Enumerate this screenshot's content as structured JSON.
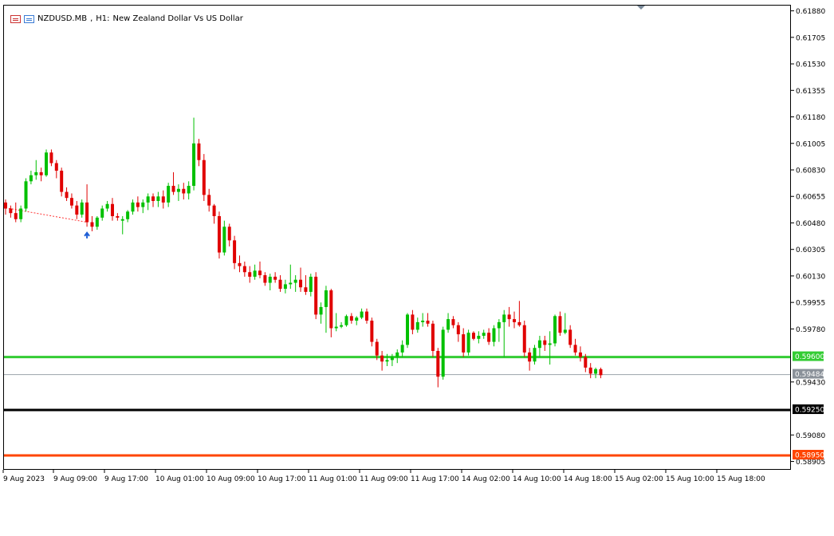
{
  "header": {
    "symbol": "NZDUSD.MB",
    "timeframe": "H1:",
    "description": "New Zealand Dollar Vs US Dollar"
  },
  "chart_data": {
    "type": "candlestick",
    "symbol": "NZDUSD.MB",
    "timeframe": "H1",
    "y_range": [
      0.5885,
      0.6192
    ],
    "y_ticks": [
      "0.61880",
      "0.61705",
      "0.61530",
      "0.61355",
      "0.61180",
      "0.61005",
      "0.60830",
      "0.60655",
      "0.60480",
      "0.60305",
      "0.60130",
      "0.59955",
      "0.59780",
      "0.59430",
      "0.59080",
      "0.58905"
    ],
    "x_ticks": [
      "9 Aug 2023",
      "9 Aug 09:00",
      "9 Aug 17:00",
      "10 Aug 01:00",
      "10 Aug 09:00",
      "10 Aug 17:00",
      "11 Aug 01:00",
      "11 Aug 09:00",
      "11 Aug 17:00",
      "14 Aug 02:00",
      "14 Aug 10:00",
      "14 Aug 18:00",
      "15 Aug 02:00",
      "15 Aug 10:00",
      "15 Aug 18:00"
    ],
    "bull_color": "#00c000",
    "bear_color": "#e00000",
    "candles": [
      [
        0.6062,
        0.6064,
        0.6054,
        0.6058
      ],
      [
        0.6058,
        0.606,
        0.6052,
        0.6055
      ],
      [
        0.6055,
        0.6062,
        0.6049,
        0.6051
      ],
      [
        0.6051,
        0.606,
        0.6049,
        0.6058
      ],
      [
        0.6058,
        0.6078,
        0.6056,
        0.6076
      ],
      [
        0.6076,
        0.6083,
        0.6074,
        0.608
      ],
      [
        0.608,
        0.609,
        0.6077,
        0.6082
      ],
      [
        0.6082,
        0.6085,
        0.6076,
        0.608
      ],
      [
        0.608,
        0.6097,
        0.6079,
        0.6095
      ],
      [
        0.6095,
        0.6097,
        0.6086,
        0.6088
      ],
      [
        0.6088,
        0.609,
        0.6078,
        0.6083
      ],
      [
        0.6083,
        0.6085,
        0.6066,
        0.6069
      ],
      [
        0.6069,
        0.6072,
        0.6063,
        0.6065
      ],
      [
        0.6065,
        0.6068,
        0.6058,
        0.606
      ],
      [
        0.606,
        0.6063,
        0.6051,
        0.6054
      ],
      [
        0.6054,
        0.6064,
        0.6052,
        0.6062
      ],
      [
        0.6062,
        0.6074,
        0.6046,
        0.6049
      ],
      [
        0.6049,
        0.6053,
        0.6043,
        0.6046
      ],
      [
        0.6046,
        0.6053,
        0.6044,
        0.6052
      ],
      [
        0.6052,
        0.606,
        0.605,
        0.6058
      ],
      [
        0.6058,
        0.6063,
        0.6056,
        0.6061
      ],
      [
        0.6061,
        0.6065,
        0.605,
        0.6053
      ],
      [
        0.6053,
        0.6055,
        0.605,
        0.6052
      ],
      [
        0.605,
        0.6053,
        0.6041,
        0.6051
      ],
      [
        0.6051,
        0.6057,
        0.6049,
        0.6056
      ],
      [
        0.6056,
        0.6064,
        0.6054,
        0.6062
      ],
      [
        0.6062,
        0.6066,
        0.6056,
        0.6059
      ],
      [
        0.6059,
        0.6064,
        0.6055,
        0.6062
      ],
      [
        0.6062,
        0.6068,
        0.6057,
        0.6066
      ],
      [
        0.6066,
        0.6068,
        0.6059,
        0.6063
      ],
      [
        0.6063,
        0.6069,
        0.6059,
        0.6066
      ],
      [
        0.6066,
        0.607,
        0.6058,
        0.6062
      ],
      [
        0.6062,
        0.6075,
        0.6059,
        0.6073
      ],
      [
        0.6073,
        0.6082,
        0.6067,
        0.6069
      ],
      [
        0.6069,
        0.6074,
        0.6063,
        0.6071
      ],
      [
        0.6071,
        0.6075,
        0.6064,
        0.6068
      ],
      [
        0.6068,
        0.6076,
        0.6064,
        0.6073
      ],
      [
        0.6073,
        0.6118,
        0.607,
        0.6101
      ],
      [
        0.6101,
        0.6104,
        0.6086,
        0.609
      ],
      [
        0.609,
        0.6094,
        0.6063,
        0.6067
      ],
      [
        0.6067,
        0.6071,
        0.6056,
        0.606
      ],
      [
        0.606,
        0.6061,
        0.6048,
        0.6053
      ],
      [
        0.6053,
        0.6056,
        0.6025,
        0.6029
      ],
      [
        0.6029,
        0.605,
        0.6027,
        0.6046
      ],
      [
        0.6046,
        0.6048,
        0.6033,
        0.6037
      ],
      [
        0.6037,
        0.604,
        0.6018,
        0.6022
      ],
      [
        0.6022,
        0.6027,
        0.6016,
        0.602
      ],
      [
        0.602,
        0.6023,
        0.6013,
        0.6016
      ],
      [
        0.6016,
        0.602,
        0.6009,
        0.6013
      ],
      [
        0.6013,
        0.6021,
        0.6011,
        0.6017
      ],
      [
        0.6017,
        0.6023,
        0.6012,
        0.6014
      ],
      [
        0.6014,
        0.6016,
        0.6007,
        0.6009
      ],
      [
        0.6009,
        0.6015,
        0.6004,
        0.6013
      ],
      [
        0.6013,
        0.6016,
        0.6009,
        0.6011
      ],
      [
        0.6011,
        0.6014,
        0.6003,
        0.6005
      ],
      [
        0.6005,
        0.6011,
        0.6002,
        0.6008
      ],
      [
        0.6008,
        0.6021,
        0.6005,
        0.6009
      ],
      [
        0.6009,
        0.6014,
        0.6003,
        0.6011
      ],
      [
        0.6011,
        0.6019,
        0.6003,
        0.6006
      ],
      [
        0.6006,
        0.6014,
        0.6001,
        0.6003
      ],
      [
        0.6003,
        0.6015,
        0.6,
        0.6013
      ],
      [
        0.6013,
        0.6016,
        0.5985,
        0.5988
      ],
      [
        0.5988,
        0.5996,
        0.5982,
        0.5993
      ],
      [
        0.5993,
        0.6007,
        0.5976,
        0.6004
      ],
      [
        0.6004,
        0.6005,
        0.5973,
        0.5979
      ],
      [
        0.5979,
        0.5989,
        0.5977,
        0.598
      ],
      [
        0.598,
        0.5983,
        0.5979,
        0.5981
      ],
      [
        0.5981,
        0.5988,
        0.598,
        0.5987
      ],
      [
        0.5987,
        0.5989,
        0.5982,
        0.5984
      ],
      [
        0.5984,
        0.5987,
        0.5981,
        0.5986
      ],
      [
        0.5986,
        0.5992,
        0.5985,
        0.599
      ],
      [
        0.599,
        0.5992,
        0.5982,
        0.5984
      ],
      [
        0.5984,
        0.5986,
        0.5967,
        0.597
      ],
      [
        0.597,
        0.5972,
        0.5958,
        0.5961
      ],
      [
        0.5961,
        0.5964,
        0.5951,
        0.5957
      ],
      [
        0.5957,
        0.5962,
        0.5954,
        0.5958
      ],
      [
        0.5958,
        0.5962,
        0.5954,
        0.596
      ],
      [
        0.596,
        0.5965,
        0.5956,
        0.5963
      ],
      [
        0.5963,
        0.5971,
        0.596,
        0.5968
      ],
      [
        0.5968,
        0.5989,
        0.5966,
        0.5988
      ],
      [
        0.5988,
        0.5991,
        0.5975,
        0.5978
      ],
      [
        0.5978,
        0.5986,
        0.5976,
        0.5983
      ],
      [
        0.5983,
        0.5989,
        0.598,
        0.5984
      ],
      [
        0.5984,
        0.5989,
        0.598,
        0.5982
      ],
      [
        0.5982,
        0.5984,
        0.596,
        0.5964
      ],
      [
        0.5964,
        0.5966,
        0.594,
        0.5947
      ],
      [
        0.5947,
        0.598,
        0.5945,
        0.5978
      ],
      [
        0.5978,
        0.5989,
        0.5976,
        0.5985
      ],
      [
        0.5985,
        0.5987,
        0.5979,
        0.5981
      ],
      [
        0.5981,
        0.5983,
        0.597,
        0.5975
      ],
      [
        0.5975,
        0.5979,
        0.596,
        0.5963
      ],
      [
        0.5963,
        0.5978,
        0.5961,
        0.5976
      ],
      [
        0.5976,
        0.5977,
        0.5971,
        0.5972
      ],
      [
        0.5972,
        0.5977,
        0.5969,
        0.5974
      ],
      [
        0.5974,
        0.5978,
        0.5972,
        0.5976
      ],
      [
        0.5976,
        0.5979,
        0.5968,
        0.597
      ],
      [
        0.597,
        0.5981,
        0.5967,
        0.5979
      ],
      [
        0.5979,
        0.5985,
        0.597,
        0.5983
      ],
      [
        0.5983,
        0.5991,
        0.596,
        0.5988
      ],
      [
        0.5988,
        0.5993,
        0.598,
        0.5985
      ],
      [
        0.5985,
        0.599,
        0.5979,
        0.5983
      ],
      [
        0.5983,
        0.5997,
        0.598,
        0.5981
      ],
      [
        0.5981,
        0.5984,
        0.596,
        0.5963
      ],
      [
        0.5963,
        0.5966,
        0.5951,
        0.5957
      ],
      [
        0.5957,
        0.5968,
        0.5955,
        0.5966
      ],
      [
        0.5966,
        0.5974,
        0.596,
        0.5971
      ],
      [
        0.5971,
        0.5974,
        0.5964,
        0.5968
      ],
      [
        0.5968,
        0.5977,
        0.5955,
        0.5969
      ],
      [
        0.5969,
        0.5988,
        0.5967,
        0.5987
      ],
      [
        0.5987,
        0.599,
        0.5974,
        0.5976
      ],
      [
        0.5976,
        0.5989,
        0.5975,
        0.5978
      ],
      [
        0.5978,
        0.5981,
        0.5966,
        0.5968
      ],
      [
        0.5968,
        0.5972,
        0.5961,
        0.5963
      ],
      [
        0.5963,
        0.5967,
        0.5957,
        0.596
      ],
      [
        0.596,
        0.5962,
        0.595,
        0.5953
      ],
      [
        0.5953,
        0.5956,
        0.5946,
        0.5949
      ],
      [
        0.5949,
        0.5953,
        0.5946,
        0.5952
      ],
      [
        0.5952,
        0.5953,
        0.5946,
        0.5948
      ]
    ],
    "horizontal_lines": [
      {
        "price": 0.596,
        "color": "#33cc33",
        "label": "0.59600",
        "label_bg": "#33cc33",
        "label_color": "#ffffff"
      },
      {
        "price": 0.59484,
        "color": "#9aa3aa",
        "label": "0.59484",
        "label_bg": "#8a9199",
        "label_color": "#ffffff"
      },
      {
        "price": 0.5925,
        "color": "#000000",
        "label": "0.59250",
        "label_bg": "#000000",
        "label_color": "#ffffff"
      },
      {
        "price": 0.5895,
        "color": "#ff4500",
        "label": "0.58950",
        "label_bg": "#ff4500",
        "label_color": "#ffffff"
      }
    ],
    "trend_line": {
      "from_index": 0,
      "from_price": 0.60585,
      "to_index": 16,
      "to_price": 0.6049,
      "color": "#ff3333"
    },
    "buy_arrow": {
      "index": 16,
      "price": 0.6042,
      "color": "#1f5fd6"
    },
    "grid": false,
    "shift_marker_color": "#7a8a99"
  }
}
